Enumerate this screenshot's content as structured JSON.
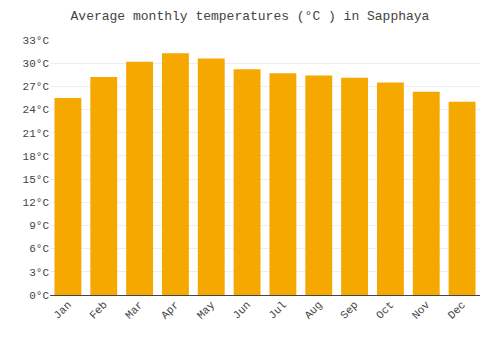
{
  "chart_data": {
    "type": "bar",
    "title": "Average monthly temperatures (°C ) in Sapphaya",
    "categories": [
      "Jan",
      "Feb",
      "Mar",
      "Apr",
      "May",
      "Jun",
      "Jul",
      "Aug",
      "Sep",
      "Oct",
      "Nov",
      "Dec"
    ],
    "values": [
      25.5,
      28.2,
      30.2,
      31.3,
      30.6,
      29.2,
      28.7,
      28.4,
      28.1,
      27.5,
      26.3,
      25.0
    ],
    "color": "#F5A800",
    "ylim": [
      0,
      33
    ],
    "yticks": [
      {
        "value": 0,
        "label": "0°C"
      },
      {
        "value": 3,
        "label": "3°C"
      },
      {
        "value": 6,
        "label": "6°C"
      },
      {
        "value": 9,
        "label": "9°C"
      },
      {
        "value": 12,
        "label": "12°C"
      },
      {
        "value": 15,
        "label": "15°C"
      },
      {
        "value": 18,
        "label": "18°C"
      },
      {
        "value": 21,
        "label": "21°C"
      },
      {
        "value": 24,
        "label": "24°C"
      },
      {
        "value": 27,
        "label": "27°C"
      },
      {
        "value": 30,
        "label": "30°C"
      },
      {
        "value": 33,
        "label": "33°C"
      }
    ],
    "grid": true
  }
}
